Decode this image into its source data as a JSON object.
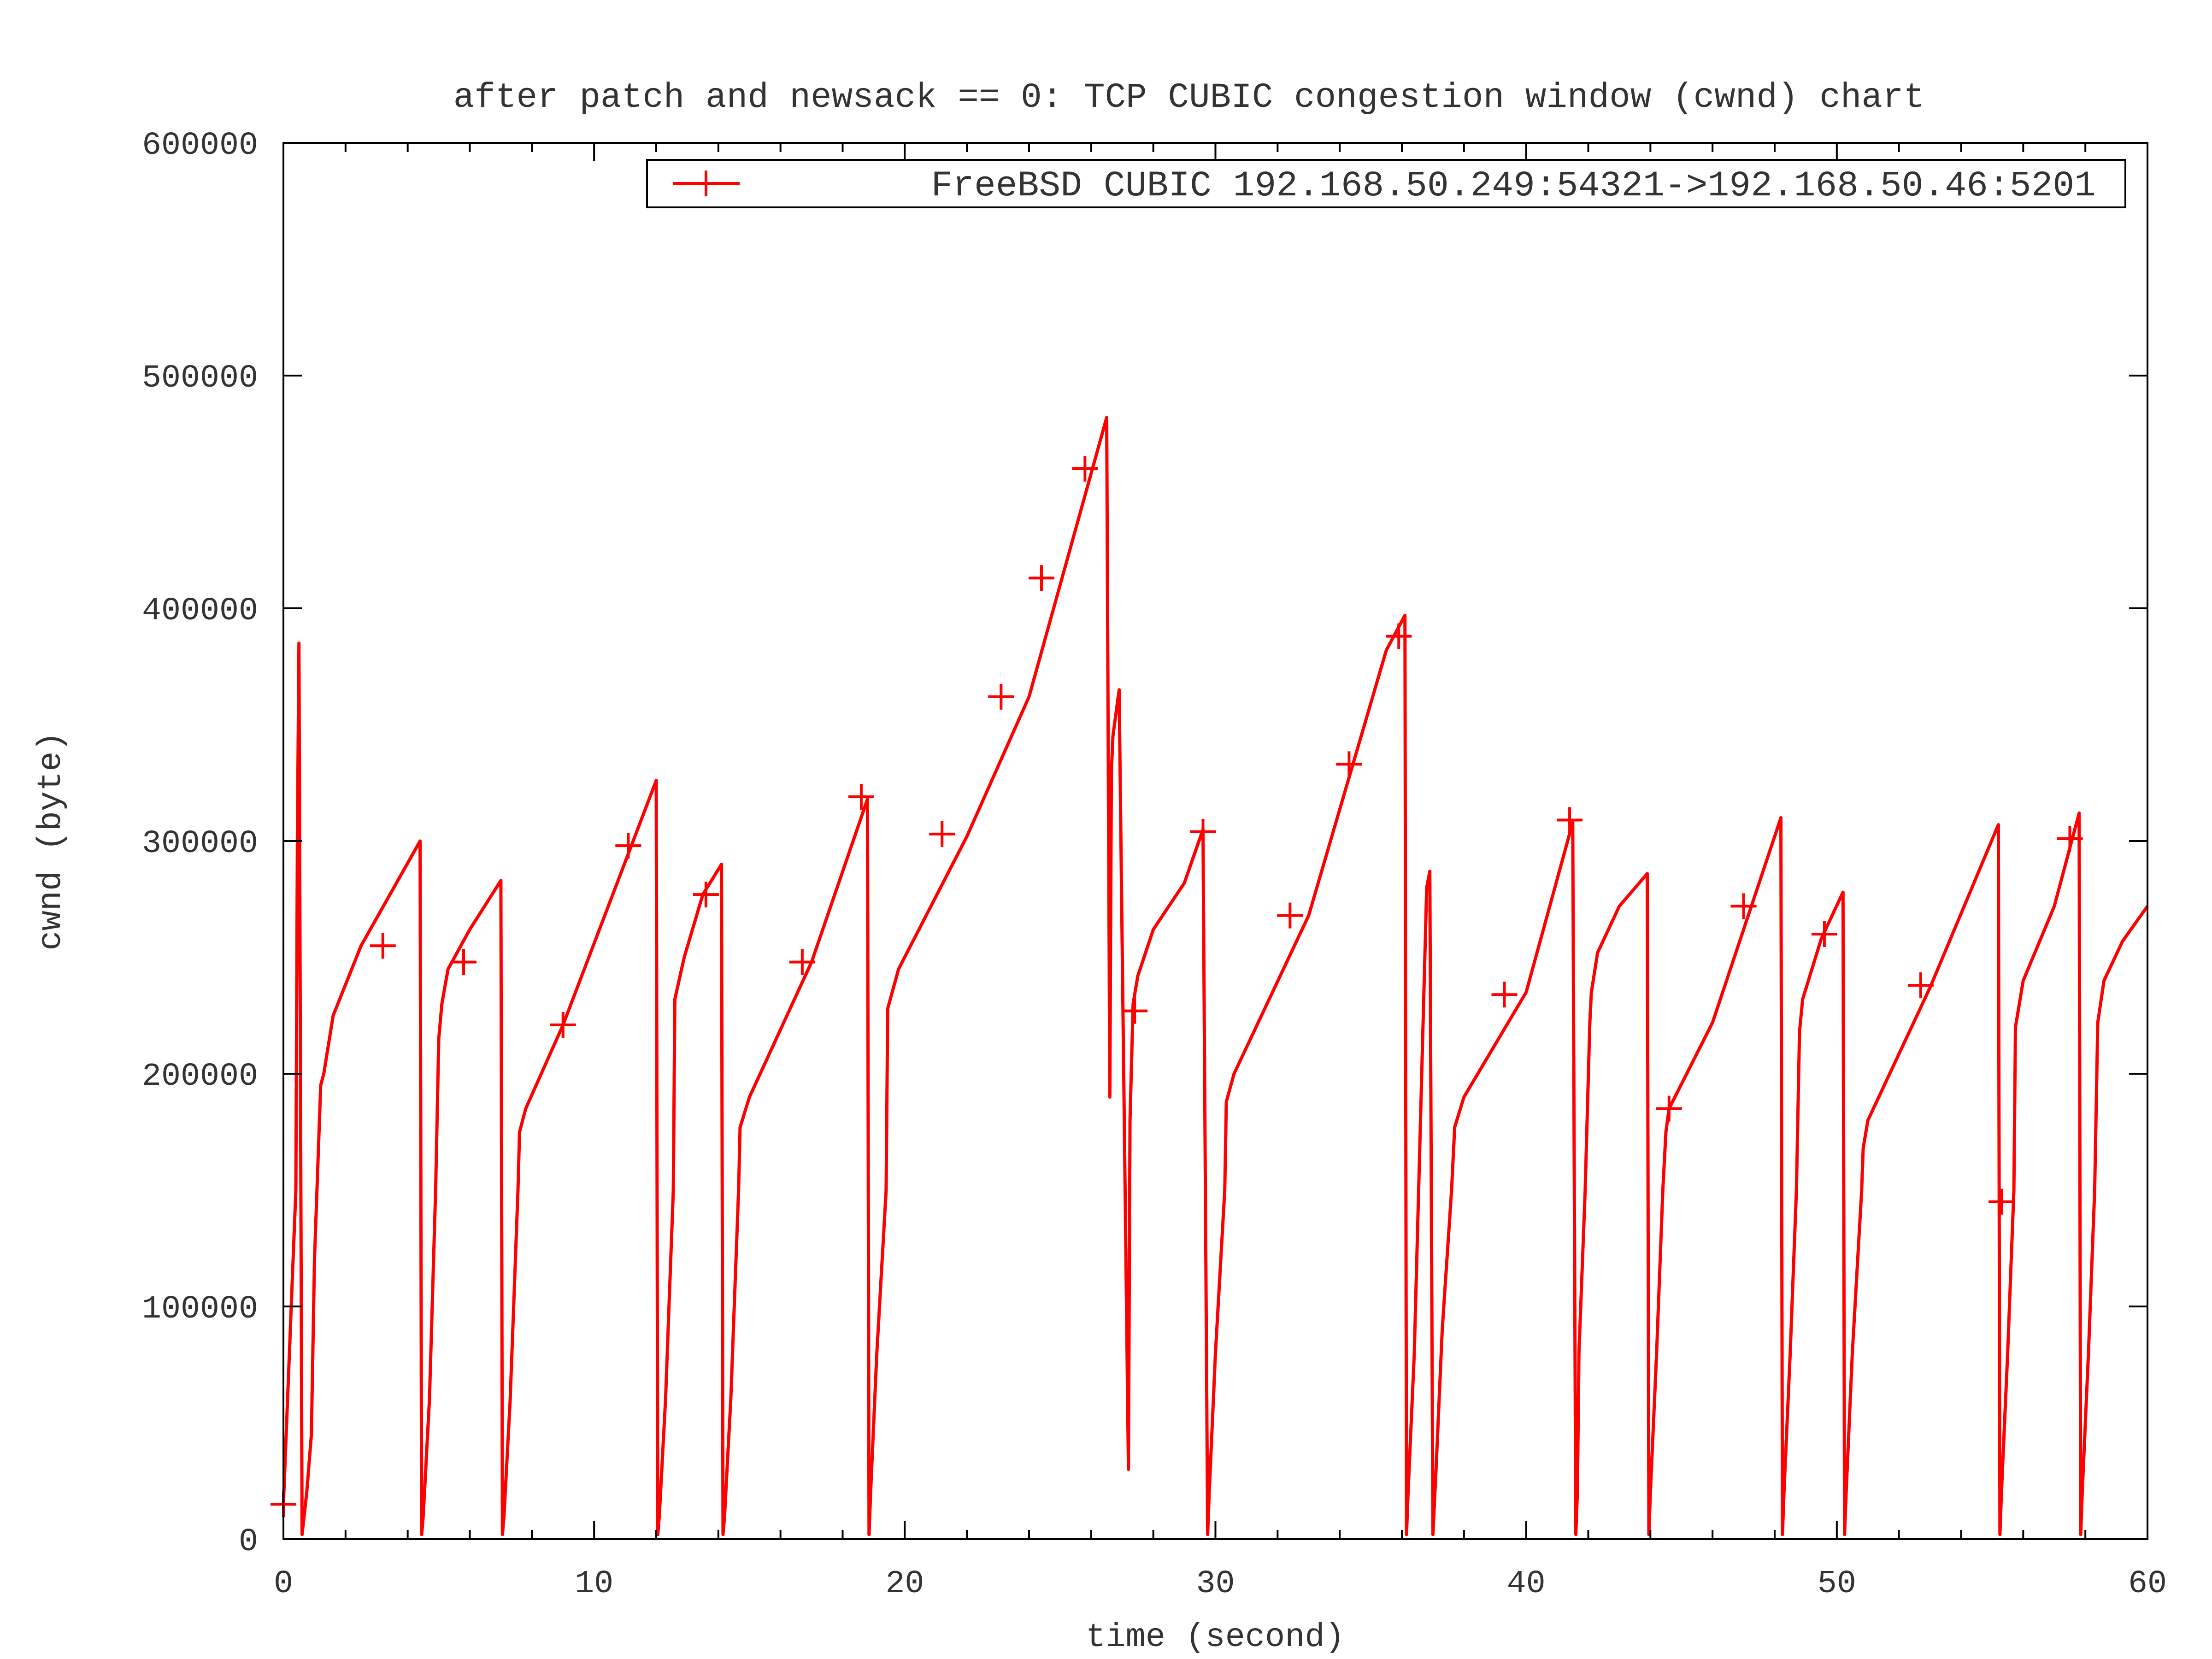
{
  "chart_data": {
    "type": "line",
    "title": "after patch and newsack == 0: TCP CUBIC congestion window (cwnd) chart",
    "xlabel": "time (second)",
    "ylabel": "cwnd (byte)",
    "xlim": [
      0,
      60
    ],
    "ylim": [
      0,
      600000
    ],
    "x_ticks": [
      "0",
      "10",
      "20",
      "30",
      "40",
      "50",
      "60"
    ],
    "y_ticks": [
      "0",
      "100000",
      "200000",
      "300000",
      "400000",
      "500000",
      "600000"
    ],
    "grid": false,
    "legend_position": "top-right",
    "series": [
      {
        "name": "FreeBSD CUBIC 192.168.50.249:54321->192.168.50.46:5201",
        "color": "#ff0000",
        "marker": "plus",
        "x": [
          0,
          0.4,
          0.45,
          0.5,
          0.6,
          0.75,
          0.9,
          1.0,
          1.2,
          1.3,
          1.6,
          2.5,
          4.4,
          4.45,
          4.5,
          4.7,
          4.9,
          5.0,
          5.1,
          5.3,
          6.0,
          7.0,
          7.05,
          7.1,
          7.3,
          7.55,
          7.6,
          7.8,
          9.0,
          12.0,
          12.05,
          12.1,
          12.3,
          12.55,
          12.6,
          12.9,
          13.5,
          14.1,
          14.15,
          14.2,
          14.4,
          14.65,
          14.7,
          15.0,
          17.0,
          18.8,
          18.85,
          18.9,
          19.1,
          19.4,
          19.45,
          19.8,
          22.0,
          24.0,
          26.5,
          26.6,
          26.65,
          26.7,
          26.9,
          27.2,
          27.25,
          27.35,
          27.5,
          28.0,
          29.0,
          29.6,
          29.75,
          29.8,
          30.0,
          30.3,
          30.35,
          30.6,
          33.0,
          35.5,
          36.1,
          36.15,
          36.2,
          36.4,
          36.8,
          36.9,
          37.0,
          37.1,
          37.3,
          37.6,
          37.7,
          38.0,
          40.0,
          41.5,
          41.6,
          41.65,
          41.7,
          41.9,
          42.05,
          42.1,
          42.3,
          43.0,
          43.9,
          43.95,
          44.0,
          44.2,
          44.4,
          44.5,
          44.6,
          46.0,
          48.2,
          48.25,
          48.3,
          48.5,
          48.7,
          48.8,
          48.9,
          49.5,
          50.2,
          50.25,
          50.3,
          50.5,
          50.8,
          50.85,
          51.0,
          53.0,
          55.2,
          55.25,
          55.3,
          55.5,
          55.7,
          55.75,
          56.0,
          57.0,
          57.8,
          57.85,
          57.9,
          58.1,
          58.3,
          58.4,
          58.6,
          59.2,
          60.0
        ],
        "y": [
          15000,
          150000,
          300000,
          385000,
          2000,
          20000,
          45000,
          120000,
          195000,
          200000,
          225000,
          255000,
          300000,
          2000,
          10000,
          60000,
          150000,
          215000,
          230000,
          245000,
          262000,
          283000,
          2000,
          10000,
          60000,
          150000,
          175000,
          185000,
          221000,
          326000,
          2000,
          10000,
          60000,
          150000,
          232000,
          250000,
          277000,
          290000,
          2000,
          10000,
          60000,
          150000,
          177000,
          190000,
          248000,
          318000,
          2000,
          20000,
          80000,
          150000,
          228000,
          245000,
          302000,
          362000,
          482000,
          190000,
          330000,
          345000,
          365000,
          30000,
          180000,
          230000,
          242000,
          262000,
          282000,
          305000,
          2000,
          20000,
          80000,
          150000,
          188000,
          200000,
          268000,
          382000,
          397000,
          2000,
          20000,
          80000,
          280000,
          287000,
          2000,
          30000,
          90000,
          150000,
          177000,
          190000,
          235000,
          308000,
          2000,
          20000,
          80000,
          150000,
          222000,
          235000,
          252000,
          272000,
          286000,
          2000,
          20000,
          80000,
          150000,
          175000,
          185000,
          222000,
          310000,
          2000,
          20000,
          80000,
          150000,
          218000,
          232000,
          258000,
          278000,
          2000,
          20000,
          80000,
          150000,
          168000,
          180000,
          237000,
          307000,
          2000,
          20000,
          80000,
          150000,
          220000,
          240000,
          272000,
          312000,
          2000,
          20000,
          80000,
          150000,
          222000,
          240000,
          257000,
          272000
        ],
        "markers_x": [
          0,
          3.2,
          5.8,
          9.0,
          11.1,
          13.6,
          16.7,
          18.6,
          21.2,
          23.1,
          24.4,
          25.8,
          27.4,
          29.6,
          32.4,
          34.3,
          35.9,
          39.3,
          41.4,
          44.6,
          47.0,
          49.6,
          52.7,
          55.3,
          57.5
        ],
        "markers_y": [
          15000,
          255000,
          248000,
          221000,
          298000,
          277000,
          248000,
          319000,
          303000,
          362000,
          413000,
          460000,
          227000,
          304000,
          268000,
          333000,
          388000,
          234000,
          309000,
          185000,
          272000,
          260000,
          238000,
          145000,
          301000
        ]
      }
    ]
  }
}
